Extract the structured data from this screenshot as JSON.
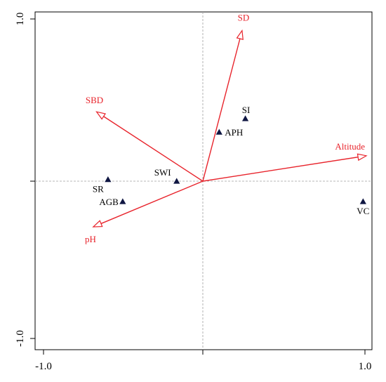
{
  "chart_data": {
    "type": "scatter",
    "title": "",
    "xlabel": "",
    "ylabel": "",
    "xlim": [
      -1.0,
      1.0
    ],
    "ylim": [
      -1.0,
      1.0
    ],
    "grid": false,
    "zero_lines": true,
    "x_ticks": [
      {
        "value": -1.0,
        "label": "-1.0"
      },
      {
        "value": 0.0,
        "label": ""
      },
      {
        "value": 1.0,
        "label": "1.0"
      }
    ],
    "y_ticks": [
      {
        "value": -1.0,
        "label": "-1.0"
      },
      {
        "value": 0.0,
        "label": ""
      },
      {
        "value": 1.0,
        "label": "1.0"
      }
    ],
    "environment_arrows": [
      {
        "name": "SD",
        "x": 0.24,
        "y": 0.89
      },
      {
        "name": "SBD",
        "x": -0.65,
        "y": 0.41
      },
      {
        "name": "Altitude",
        "x": 1.0,
        "y": 0.15
      },
      {
        "name": "pH",
        "x": -0.67,
        "y": -0.27
      }
    ],
    "species_points": [
      {
        "name": "SI",
        "x": 0.26,
        "y": 0.37
      },
      {
        "name": "APH",
        "x": 0.1,
        "y": 0.29
      },
      {
        "name": "SWI",
        "x": -0.16,
        "y": 0.0
      },
      {
        "name": "SR",
        "x": -0.58,
        "y": 0.01
      },
      {
        "name": "AGB",
        "x": -0.49,
        "y": -0.12
      },
      {
        "name": "VC",
        "x": 0.98,
        "y": -0.12
      }
    ],
    "colors": {
      "arrows": "#e8242c",
      "points": "#0f1642",
      "frame": "#000000",
      "zero_lines": "#a0a0a0"
    }
  }
}
